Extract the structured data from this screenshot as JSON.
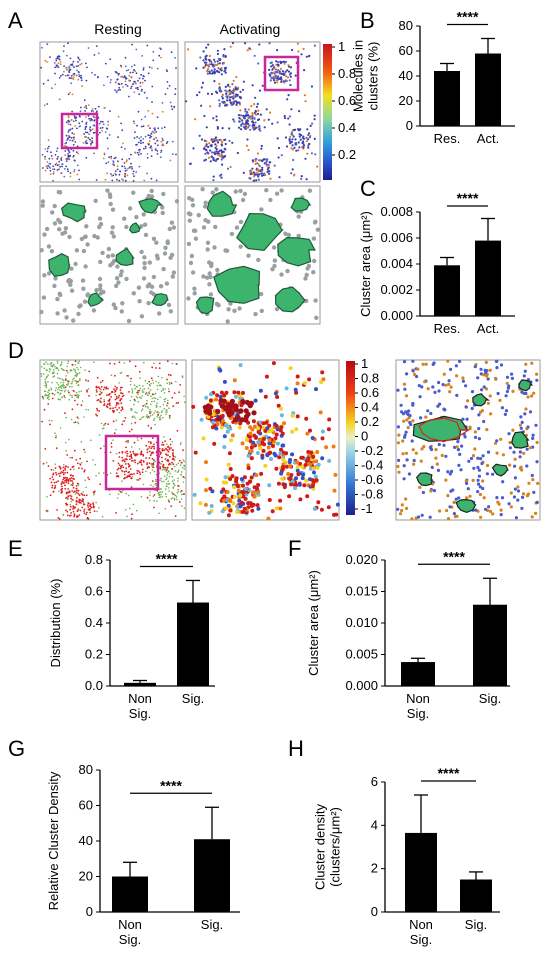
{
  "figure": {
    "panel_letters": [
      "A",
      "B",
      "C",
      "D",
      "E",
      "F",
      "G",
      "H"
    ],
    "panel_A": {
      "titles": [
        "Resting",
        "Activating"
      ],
      "colorbar_ticks": [
        "1",
        "0.8",
        "0.6",
        "0.4",
        "0.2"
      ]
    },
    "panel_D": {
      "colorbar_ticks": [
        "1",
        "0.8",
        "0.6",
        "0.4",
        "0.2",
        "0",
        "-0.2",
        "-0.4",
        "-0.6",
        "-0.8",
        "-1"
      ]
    },
    "colors": {
      "bar": "#000000",
      "highlight_box": "#c8289b",
      "cluster_fill": "#3cb46e",
      "point_blue": "#3a3fb0",
      "point_red": "#e02020",
      "point_green": "#6ab04c",
      "point_grey": "#9aa0a0"
    }
  },
  "chart_data": [
    {
      "panel": "B",
      "type": "bar",
      "categories": [
        "Res.",
        "Act."
      ],
      "values": [
        44,
        58
      ],
      "errors": [
        6,
        12
      ],
      "ylabel_lines": [
        "Molecules in",
        "clusters (%)"
      ],
      "ylim": [
        0,
        80
      ],
      "yticks": [
        "0",
        "20",
        "40",
        "60",
        "80"
      ],
      "significance": "****"
    },
    {
      "panel": "C",
      "type": "bar",
      "categories": [
        "Res.",
        "Act."
      ],
      "values": [
        0.0039,
        0.0058
      ],
      "errors": [
        0.0006,
        0.0017
      ],
      "ylabel_lines": [
        "Cluster area (μm²)"
      ],
      "ylim": [
        0,
        0.008
      ],
      "yticks": [
        "0.000",
        "0.002",
        "0.004",
        "0.006",
        "0.008"
      ],
      "significance": "****"
    },
    {
      "panel": "E",
      "type": "bar",
      "categories": [
        "Non Sig.",
        "Sig."
      ],
      "values": [
        0.02,
        0.53
      ],
      "errors": [
        0.015,
        0.14
      ],
      "ylabel_lines": [
        "Distribution (%)"
      ],
      "ylim": [
        0,
        0.8
      ],
      "yticks": [
        "0.0",
        "0.2",
        "0.4",
        "0.6",
        "0.8"
      ],
      "significance": "****"
    },
    {
      "panel": "F",
      "type": "bar",
      "categories": [
        "Non Sig.",
        "Sig."
      ],
      "values": [
        0.0038,
        0.0129
      ],
      "errors": [
        0.0006,
        0.0042
      ],
      "ylabel_lines": [
        "Cluster area (μm²)"
      ],
      "ylim": [
        0,
        0.02
      ],
      "yticks": [
        "0.000",
        "0.005",
        "0.010",
        "0.015",
        "0.020"
      ],
      "significance": "****"
    },
    {
      "panel": "G",
      "type": "bar",
      "categories": [
        "Non Sig.",
        "Sig."
      ],
      "values": [
        20,
        41
      ],
      "errors": [
        8,
        18
      ],
      "ylabel_lines": [
        "Relative Cluster Density"
      ],
      "ylim": [
        0,
        80
      ],
      "yticks": [
        "0",
        "20",
        "40",
        "60",
        "80"
      ],
      "significance": "****"
    },
    {
      "panel": "H",
      "type": "bar",
      "categories": [
        "Non Sig.",
        "Sig."
      ],
      "values": [
        3.65,
        1.5
      ],
      "errors": [
        1.75,
        0.35
      ],
      "ylabel_lines": [
        "Cluster density",
        "(clusters/μm²)"
      ],
      "ylim": [
        0,
        6
      ],
      "yticks": [
        "0",
        "2",
        "4",
        "6"
      ],
      "significance": "****"
    }
  ]
}
